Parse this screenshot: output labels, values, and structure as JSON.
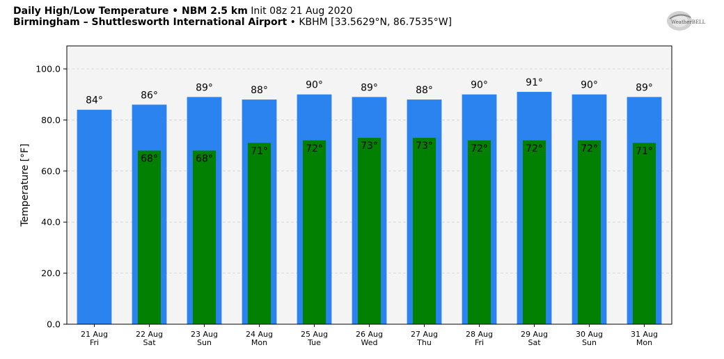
{
  "header": {
    "line1_bold": "Daily High/Low Temperature • NBM 2.5 km",
    "line1_norm": "Init 08z 21 Aug 2020",
    "line2_bold": "Birmingham – Shuttlesworth International Airport",
    "line2_norm": "• KBHM [33.5629°N, 86.7535°W]"
  },
  "logo": {
    "icon": "weatherbell-logo",
    "text": "WeatherBELL"
  },
  "colors": {
    "high": "#2b83ef",
    "low": "#018001",
    "plot_bg": "#f4f4f4",
    "grid": "#d0d0d0"
  },
  "chart_data": {
    "type": "bar",
    "ylabel": "Temperature [°F]",
    "ylim": [
      0,
      109
    ],
    "yticks": [
      "0.0",
      "20.0",
      "40.0",
      "60.0",
      "80.0",
      "100.0"
    ],
    "grid": true,
    "dates": [
      "21 Aug",
      "22 Aug",
      "23 Aug",
      "24 Aug",
      "25 Aug",
      "26 Aug",
      "27 Aug",
      "28 Aug",
      "29 Aug",
      "30 Aug",
      "31 Aug"
    ],
    "days": [
      "Fri",
      "Sat",
      "Sun",
      "Mon",
      "Tue",
      "Wed",
      "Thu",
      "Fri",
      "Sat",
      "Sun",
      "Mon"
    ],
    "series": [
      {
        "values": [
          84,
          86,
          89,
          88,
          90,
          89,
          88,
          90,
          91,
          90,
          89
        ],
        "labels": [
          "84°",
          "86°",
          "89°",
          "88°",
          "90°",
          "89°",
          "88°",
          "90°",
          "91°",
          "90°",
          "89°"
        ]
      },
      {
        "values": [
          null,
          68,
          68,
          71,
          72,
          73,
          73,
          72,
          72,
          72,
          71
        ],
        "labels": [
          "",
          "68°",
          "68°",
          "71°",
          "72°",
          "73°",
          "73°",
          "72°",
          "72°",
          "72°",
          "71°"
        ]
      }
    ]
  }
}
